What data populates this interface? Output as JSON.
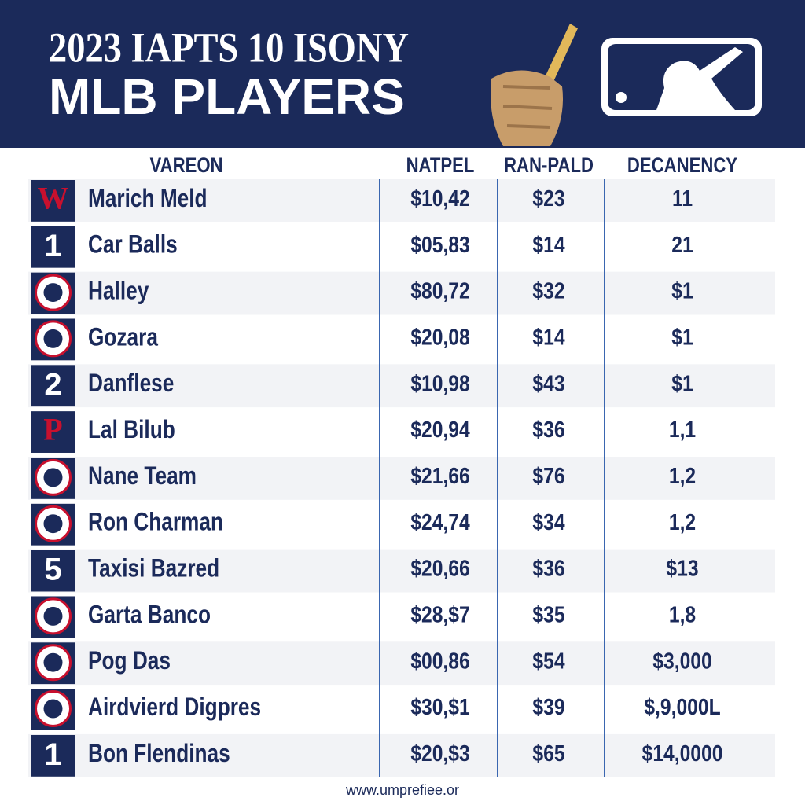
{
  "header": {
    "title_line1": "2023 IAPTS 10 ISONY",
    "title_line2": "MLB PLAYERS"
  },
  "table": {
    "columns": [
      "VAREON",
      "NATPEL",
      "RAN-PALD",
      "DECANENCY"
    ],
    "rows": [
      {
        "badge": "W",
        "name": "Marich Meld",
        "cells": [
          "$10,42",
          "$23",
          "11"
        ]
      },
      {
        "badge": "1",
        "name": "Car Balls",
        "cells": [
          "$05,83",
          "$14",
          "21"
        ]
      },
      {
        "name": "Halley",
        "cells": [
          "$80,72",
          "$32",
          "$1"
        ]
      },
      {
        "name": "Gozara",
        "cells": [
          "$20,08",
          "$14",
          "$1"
        ]
      },
      {
        "badge": "2",
        "name": "Danflese",
        "cells": [
          "$10,98",
          "$43",
          "$1"
        ]
      },
      {
        "badge": "P",
        "name": "Lal Bilub",
        "cells": [
          "$20,94",
          "$36",
          "1,1"
        ]
      },
      {
        "name": "Nane Team",
        "cells": [
          "$21,66",
          "$76",
          "1,2"
        ]
      },
      {
        "name": "Ron Charman",
        "cells": [
          "$24,74",
          "$34",
          "1,2"
        ]
      },
      {
        "badge": "5",
        "name": "Taxisi Bazred",
        "cells": [
          "$20,66",
          "$36",
          "$13"
        ]
      },
      {
        "name": "Garta Banco",
        "cells": [
          "$28,$7",
          "$35",
          "1,8"
        ]
      },
      {
        "name": "Pog Das",
        "cells": [
          "$00,86",
          "$54",
          "$3,000"
        ]
      },
      {
        "name": "Airdvierd Digpres",
        "cells": [
          "$30,$1",
          "$39",
          "$,9,000L"
        ]
      },
      {
        "badge": "1",
        "name": "Bon Flendinas",
        "cells": [
          "$20,$3",
          "$65",
          "$14,0000"
        ]
      }
    ]
  },
  "footer": {
    "url": "www.umprefiee.or"
  }
}
